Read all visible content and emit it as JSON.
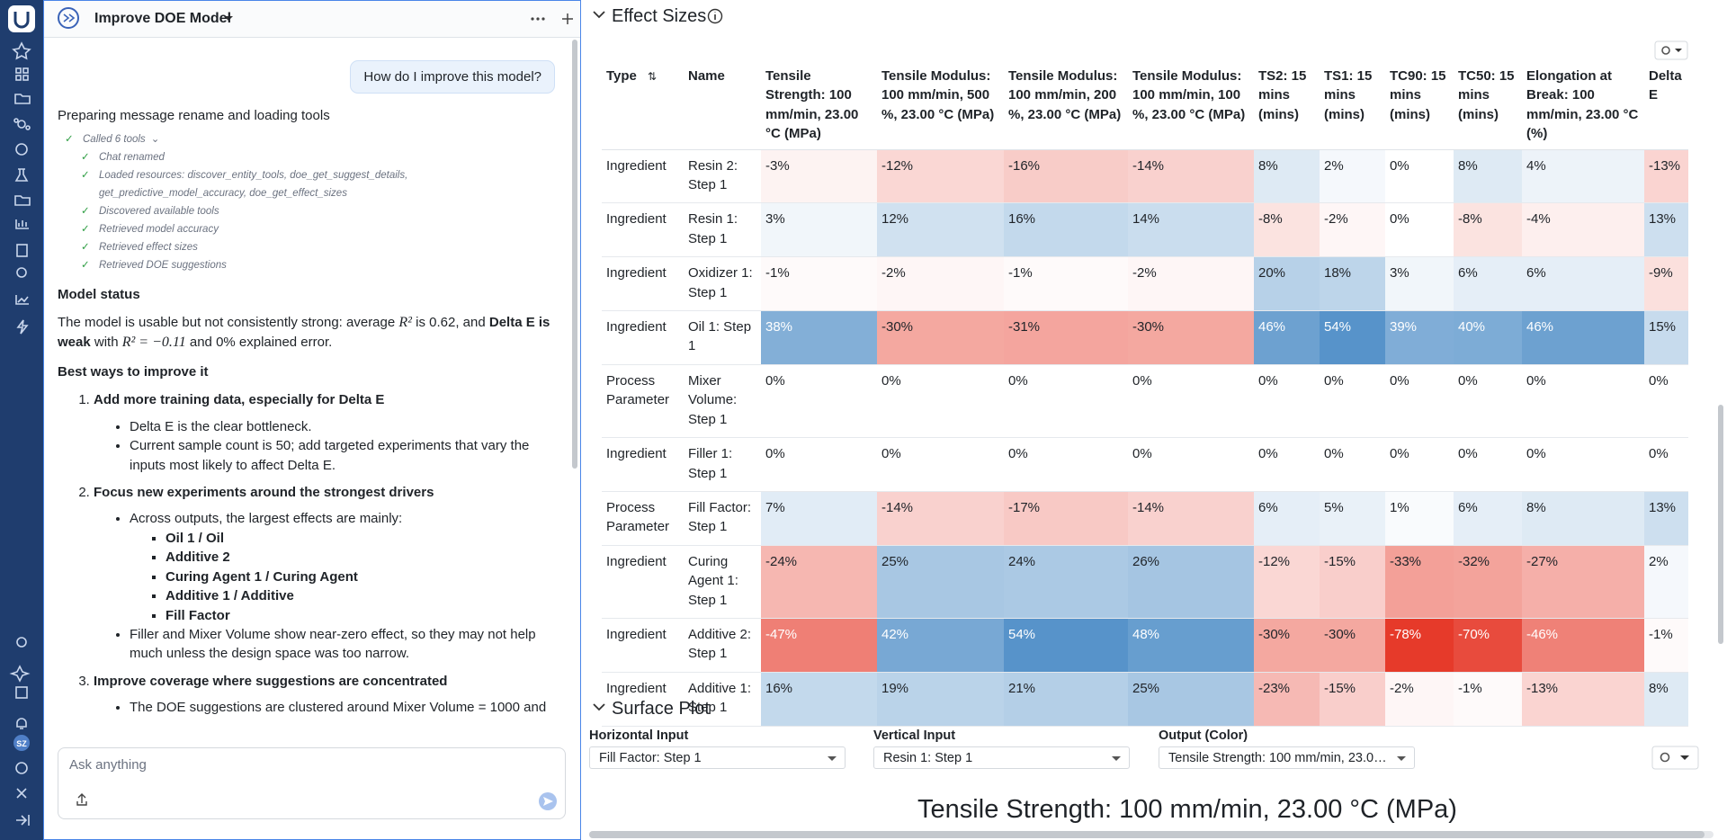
{
  "nav": {
    "avatar": "SZ"
  },
  "chat": {
    "title": "Improve DOE Model",
    "user_message": "How do I improve this model?",
    "status": "Preparing message rename and loading tools",
    "tools_summary": "Called 6 tools",
    "tools": [
      "Chat renamed",
      "Loaded resources: discover_entity_tools, doe_get_suggest_details, get_predictive_model_accuracy, doe_get_effect_sizes",
      "Discovered available tools",
      "Retrieved model accuracy",
      "Retrieved effect sizes",
      "Retrieved DOE suggestions"
    ],
    "response": {
      "status_heading": "Model status",
      "status_text": [
        "The model is usable but not consistently strong: average ",
        "R²",
        " is 0.62, and ",
        "Delta E is weak",
        " with ",
        "R² = −0.11",
        " and 0% explained error."
      ],
      "improve_heading": "Best ways to improve it",
      "step1": {
        "title": "Add more training data, especially for Delta E",
        "bullets": [
          "Delta E is the clear bottleneck.",
          "Current sample count is 50; add targeted experiments that vary the inputs most likely to affect Delta E."
        ]
      },
      "step2": {
        "title": "Focus new experiments around the strongest drivers",
        "intro": "Across outputs, the largest effects are mainly:",
        "drivers": [
          "Oil 1 / Oil",
          "Additive 2",
          "Curing Agent 1 / Curing Agent",
          "Additive 1 / Additive",
          "Fill Factor"
        ],
        "note": "Filler and Mixer Volume show near-zero effect, so they may not help much unless the design space was too narrow."
      },
      "step3": {
        "title": "Improve coverage where suggestions are concentrated",
        "bullets": [
          "The DOE suggestions are clustered around Mixer Volume = 1000 and"
        ]
      }
    },
    "input_placeholder": "Ask anything"
  },
  "effect_sizes": {
    "title": "Effect Sizes",
    "columns": [
      "Type",
      "Name",
      "Tensile Strength: 100 mm/min, 23.00 °C (MPa)",
      "Tensile Modulus: 100 mm/min, 500 %, 23.00 °C (MPa)",
      "Tensile Modulus: 100 mm/min, 200 %, 23.00 °C (MPa)",
      "Tensile Modulus: 100 mm/min, 100 %, 23.00 °C (MPa)",
      "TS2: 15 mins (mins)",
      "TS1: 15 mins (mins)",
      "TC90: 15 mins (mins)",
      "TC50: 15 mins (mins)",
      "Elongation at Break: 100 mm/min, 23.00 °C (%)",
      "Delta E"
    ],
    "rows": [
      {
        "type": "Ingredient",
        "name": "Resin 2: Step 1",
        "values": [
          "-3%",
          "-12%",
          "-16%",
          "-14%",
          "8%",
          "2%",
          "0%",
          "8%",
          "4%",
          "-13%"
        ]
      },
      {
        "type": "Ingredient",
        "name": "Resin 1: Step 1",
        "values": [
          "3%",
          "12%",
          "16%",
          "14%",
          "-8%",
          "-2%",
          "0%",
          "-8%",
          "-4%",
          "13%"
        ]
      },
      {
        "type": "Ingredient",
        "name": "Oxidizer 1: Step 1",
        "values": [
          "-1%",
          "-2%",
          "-1%",
          "-2%",
          "20%",
          "18%",
          "3%",
          "6%",
          "6%",
          "-9%"
        ]
      },
      {
        "type": "Ingredient",
        "name": "Oil 1: Step 1",
        "values": [
          "38%",
          "-30%",
          "-31%",
          "-30%",
          "46%",
          "54%",
          "39%",
          "40%",
          "46%",
          "15%"
        ]
      },
      {
        "type": "Process Parameter",
        "name": "Mixer Volume: Step 1",
        "values": [
          "0%",
          "0%",
          "0%",
          "0%",
          "0%",
          "0%",
          "0%",
          "0%",
          "0%",
          "0%"
        ]
      },
      {
        "type": "Ingredient",
        "name": "Filler 1: Step 1",
        "values": [
          "0%",
          "0%",
          "0%",
          "0%",
          "0%",
          "0%",
          "0%",
          "0%",
          "0%",
          "0%"
        ]
      },
      {
        "type": "Process Parameter",
        "name": "Fill Factor: Step 1",
        "values": [
          "7%",
          "-14%",
          "-17%",
          "-14%",
          "6%",
          "5%",
          "1%",
          "6%",
          "8%",
          "13%"
        ]
      },
      {
        "type": "Ingredient",
        "name": "Curing Agent 1: Step 1",
        "values": [
          "-24%",
          "25%",
          "24%",
          "26%",
          "-12%",
          "-15%",
          "-33%",
          "-32%",
          "-27%",
          "2%"
        ]
      },
      {
        "type": "Ingredient",
        "name": "Additive 2: Step 1",
        "values": [
          "-47%",
          "42%",
          "54%",
          "48%",
          "-30%",
          "-30%",
          "-78%",
          "-70%",
          "-46%",
          "-1%"
        ]
      },
      {
        "type": "Ingredient",
        "name": "Additive 1: Step 1",
        "values": [
          "16%",
          "19%",
          "21%",
          "25%",
          "-23%",
          "-15%",
          "-2%",
          "-1%",
          "-13%",
          "8%"
        ]
      }
    ]
  },
  "surface_plot": {
    "title": "Surface Plot",
    "controls": [
      {
        "label": "Horizontal Input",
        "value": "Fill Factor: Step 1"
      },
      {
        "label": "Vertical Input",
        "value": "Resin 1: Step 1"
      },
      {
        "label": "Output (Color)",
        "value": "Tensile Strength: 100 mm/min, 23.00 °C (MPa)"
      }
    ],
    "plot_title": "Tensile Strength: 100 mm/min, 23.00 °C (MPa)"
  }
}
